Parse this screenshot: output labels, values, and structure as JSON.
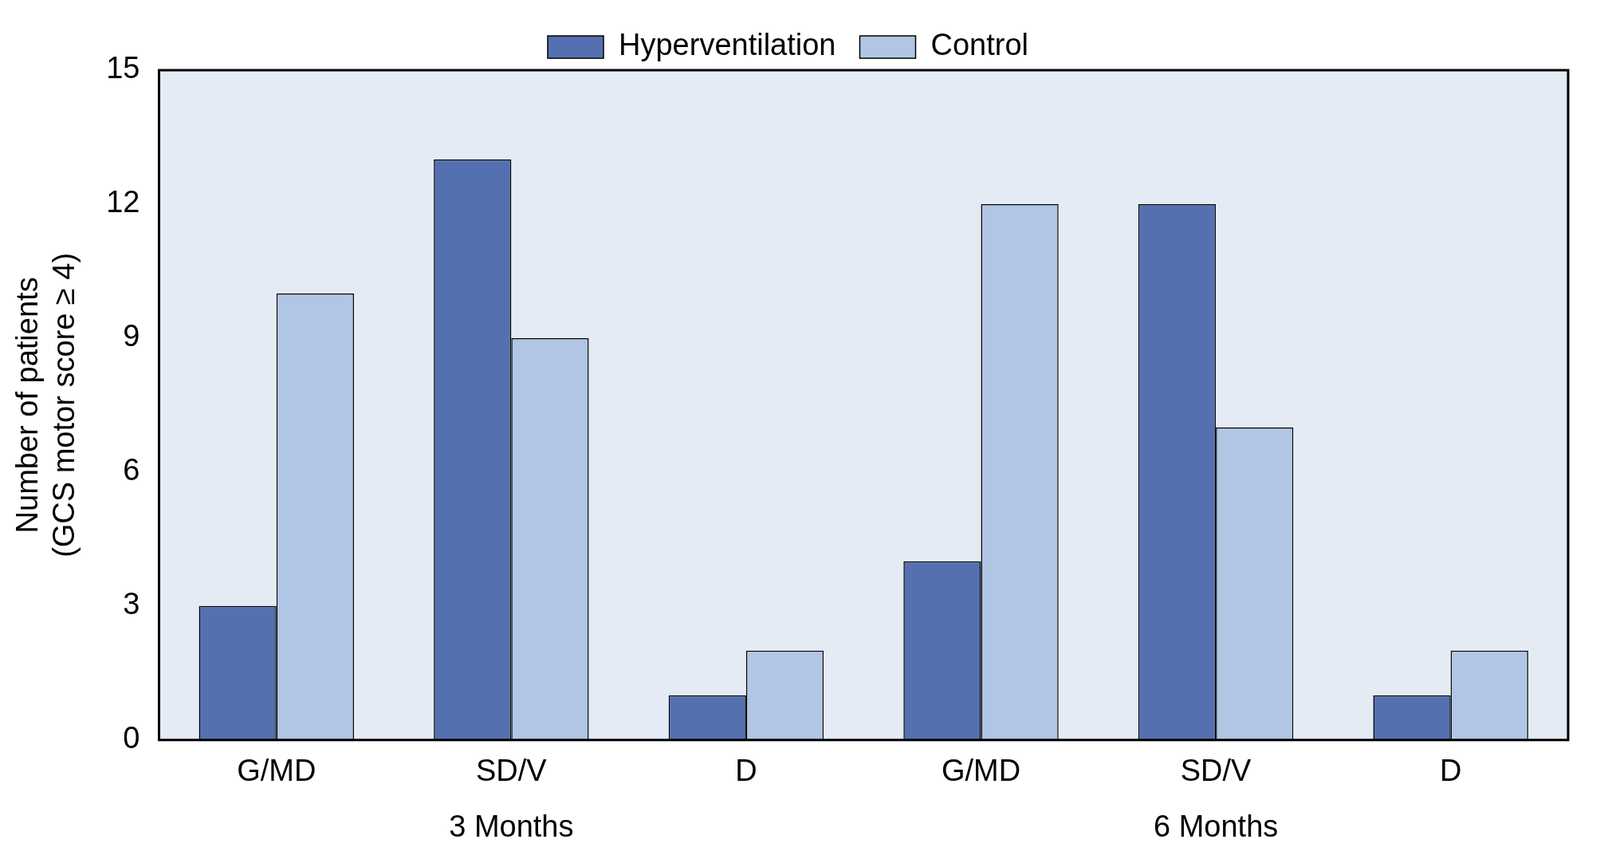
{
  "chart_data": {
    "type": "bar",
    "categories": [
      "G/MD",
      "SD/V",
      "D",
      "G/MD",
      "SD/V",
      "D"
    ],
    "category_groups": [
      "3 Months",
      "6 Months"
    ],
    "y_label": [
      "Number of patients",
      "(GCS motor score ≥ 4)"
    ],
    "series": [
      {
        "name": "Hyperventilation",
        "color": "#5470b0",
        "values": [
          3,
          13,
          1,
          4,
          12,
          1
        ]
      },
      {
        "name": "Control",
        "color": "#b0c6e4",
        "values": [
          10,
          9,
          2,
          12,
          7,
          2
        ]
      }
    ],
    "ylim": [
      0,
      15
    ],
    "yticks": [
      0,
      3,
      6,
      9,
      12,
      15
    ],
    "grid": false,
    "legend": "top"
  }
}
